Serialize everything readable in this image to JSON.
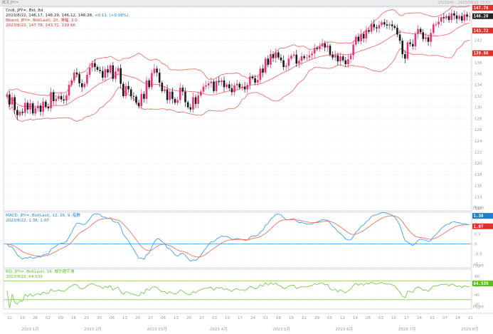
{
  "window": {
    "title": "概況 JPY=",
    "status": "2023/09/... 2023/08/22 13:53"
  },
  "main_pane": {
    "line1": "Cndl, JPY=, Bid, 8d",
    "line2_prefix": "2023/8/22, 146.17, 146.29, 146.12, 146.28,",
    "line2_change": "+0.11, (+0.08%)",
    "line3": "Bband, JPY=, Bid(Last), 20, 滑幅, 2.0",
    "line4": "2023/8/22, 147.78, 143.72, 139.66",
    "y_ticks": [
      "146",
      "144",
      "142",
      "140",
      "138",
      "136",
      "134",
      "132",
      "130",
      "128",
      "126",
      "124",
      "122",
      "120",
      "118",
      "116",
      "114",
      "112"
    ],
    "price_tags": [
      {
        "label": "147.78",
        "value": 147.78,
        "color": "#e0302a"
      },
      {
        "label": "146.28",
        "value": 146.28,
        "color": "#222222"
      },
      {
        "label": "143.72",
        "value": 143.72,
        "color": "#e0302a"
      },
      {
        "label": "139.66",
        "value": 139.66,
        "color": "#e0302a"
      }
    ],
    "unit_label": "円/JPY"
  },
  "macd_pane": {
    "line1": "MACD, JPY=, Bid(Last), 12, 26, 9, 指數",
    "line2": "2023/8/22, 1.38, 1.07",
    "y_ticks": [
      "1",
      "0.5",
      "0",
      "-0.5",
      "-1"
    ],
    "tags": [
      {
        "label": "1.38",
        "color": "#1a7fd6"
      },
      {
        "label": "1.07",
        "color": "#e0302a"
      }
    ],
    "unit_label": "円/JPY"
  },
  "rsi_pane": {
    "line1": "RSI, JPY=, Bid(Last), 14, 威尔德平滑",
    "line2": "2023/8/22, 64.539",
    "y_ticks": [
      "80",
      "60",
      "40",
      "20"
    ],
    "tag": {
      "label": "64.539",
      "color": "#5cbf1f"
    },
    "unit_label": "円/JPY"
  },
  "x_axis": {
    "day_labels": [
      "12",
      "19",
      "26",
      "02",
      "09",
      "16",
      "23",
      "30",
      "06",
      "13",
      "20",
      "27",
      "06",
      "13",
      "20",
      "27",
      "03",
      "10",
      "17",
      "24",
      "01",
      "08",
      "15",
      "22",
      "29",
      "05",
      "12",
      "19",
      "26",
      "03",
      "10",
      "17",
      "24",
      "31",
      "07",
      "14",
      "21"
    ],
    "month_labels": [
      "2023 1月",
      "2023 2月",
      "2023 03月",
      "2023 4月",
      "2023 5月",
      "2023 6月",
      "2023 7月",
      "2023 8月"
    ]
  },
  "chart_data": {
    "type": "candlestick",
    "symbol": "JPY=",
    "closes": [
      132.3,
      130.5,
      131.8,
      129.5,
      128.6,
      129.2,
      129.0,
      130.8,
      129.6,
      130.7,
      128.9,
      129.8,
      130.3,
      129.2,
      131.0,
      130.1,
      129.8,
      132.7,
      131.1,
      131.5,
      132.0,
      131.4,
      131.2,
      132.1,
      134.0,
      134.8,
      136.2,
      135.9,
      134.3,
      133.6,
      134.2,
      135.8,
      137.1,
      137.9,
      137.2,
      136.7,
      136.5,
      135.3,
      136.8,
      136.2,
      137.5,
      135.1,
      136.4,
      137.0,
      134.2,
      132.0,
      133.8,
      133.2,
      132.0,
      131.9,
      130.8,
      130.2,
      132.4,
      131.5,
      134.8,
      133.6,
      136.1,
      136.9,
      136.2,
      134.4,
      132.9,
      133.2,
      131.3,
      132.8,
      131.5,
      130.8,
      131.3,
      133.5,
      132.8,
      130.9,
      130.0,
      129.6,
      131.8,
      130.6,
      132.1,
      132.8,
      133.7,
      133.9,
      134.3,
      134.6,
      132.9,
      134.7,
      134.5,
      134.8,
      133.6,
      134.1,
      133.4,
      132.7,
      133.9,
      134.2,
      133.5,
      133.7,
      133.2,
      134.0,
      135.5,
      135.2,
      134.4,
      134.9,
      136.9,
      136.2,
      138.7,
      137.6,
      139.5,
      138.8,
      139.8,
      138.9,
      138.4,
      137.2,
      137.4,
      138.7,
      139.2,
      139.4,
      137.8,
      138.3,
      139.1,
      138.8,
      138.9,
      139.3,
      139.6,
      140.6,
      140.4,
      140.9,
      141.4,
      140.7,
      141.0,
      139.4,
      138.9,
      139.3,
      138.2,
      139.1,
      138.4,
      137.7,
      138.6,
      139.3,
      141.2,
      142.6,
      141.8,
      143.1,
      142.3,
      143.8,
      143.5,
      144.9,
      144.3,
      144.1,
      144.7,
      145.2,
      144.8,
      144.6,
      144.8,
      144.5,
      144.2,
      143.0,
      141.9,
      139.5,
      138.7,
      141.6,
      141.3,
      140.9,
      143.1,
      144.0,
      143.4,
      142.2,
      142.5,
      141.7,
      143.3,
      144.8,
      144.8,
      145.3,
      146.1,
      145.9,
      146.3,
      145.6,
      146.8,
      146.4,
      145.8,
      146.3,
      145.5,
      146.6,
      146.2,
      146.3
    ],
    "bollinger_last": {
      "upper": 147.78,
      "middle": 143.72,
      "lower": 139.66
    },
    "macd_last": {
      "macd": 1.38,
      "signal": 1.07
    },
    "rsi_last": 64.539,
    "y_range_price": [
      111.5,
      147.9
    ],
    "y_range_macd": [
      -1.2,
      1.6
    ],
    "y_range_rsi": [
      10,
      95
    ],
    "last_close": 146.28
  }
}
